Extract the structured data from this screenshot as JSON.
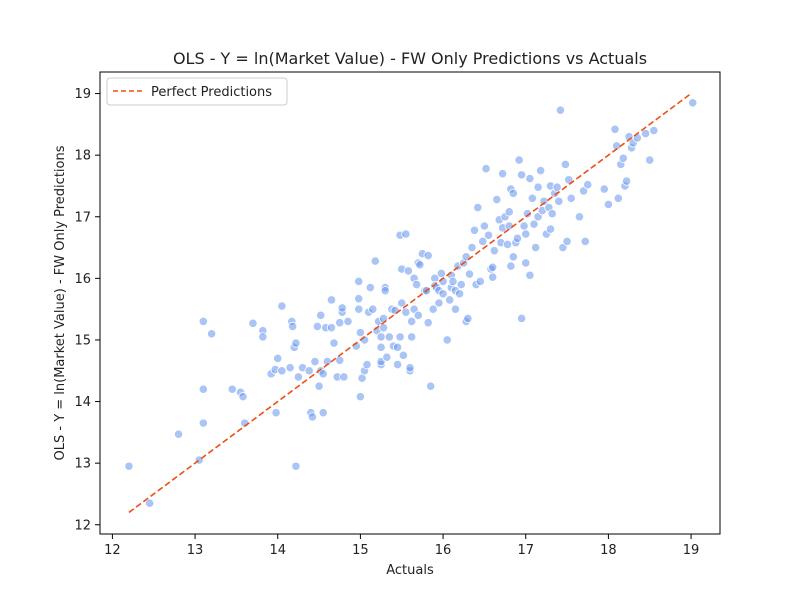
{
  "chart_data": {
    "type": "scatter",
    "title": "OLS - Y = ln(Market Value) - FW Only Predictions vs Actuals",
    "xlabel": "Actuals",
    "ylabel": "OLS - Y = ln(Market Value) - FW Only Predictions",
    "xlim": [
      11.85,
      19.35
    ],
    "ylim": [
      11.85,
      19.35
    ],
    "xticks": [
      12,
      13,
      14,
      15,
      16,
      17,
      18,
      19
    ],
    "yticks": [
      12,
      13,
      14,
      15,
      16,
      17,
      18,
      19
    ],
    "grid": false,
    "legend": {
      "position": "top-left",
      "entries": [
        "Perfect Predictions"
      ]
    },
    "colors": {
      "points": "#6495ED",
      "reference_line": "#F04E14"
    },
    "reference_line": {
      "name": "Perfect Predictions",
      "x": [
        12.2,
        19.0
      ],
      "y": [
        12.2,
        19.0
      ]
    },
    "series": [
      {
        "points": [
          [
            12.2,
            12.95
          ],
          [
            12.45,
            12.35
          ],
          [
            12.8,
            13.47
          ],
          [
            13.05,
            13.05
          ],
          [
            13.1,
            13.65
          ],
          [
            13.1,
            14.2
          ],
          [
            13.1,
            15.3
          ],
          [
            13.2,
            15.1
          ],
          [
            13.45,
            14.2
          ],
          [
            13.55,
            14.15
          ],
          [
            13.6,
            13.65
          ],
          [
            13.58,
            14.08
          ],
          [
            13.7,
            15.27
          ],
          [
            13.82,
            15.15
          ],
          [
            13.82,
            15.05
          ],
          [
            13.92,
            14.45
          ],
          [
            13.97,
            14.52
          ],
          [
            13.98,
            13.82
          ],
          [
            14.0,
            14.7
          ],
          [
            14.05,
            14.5
          ],
          [
            14.05,
            15.55
          ],
          [
            14.15,
            14.55
          ],
          [
            14.17,
            15.3
          ],
          [
            14.18,
            15.22
          ],
          [
            14.2,
            14.88
          ],
          [
            14.22,
            14.95
          ],
          [
            14.22,
            12.95
          ],
          [
            14.25,
            14.4
          ],
          [
            14.3,
            14.55
          ],
          [
            14.38,
            14.5
          ],
          [
            14.4,
            13.82
          ],
          [
            14.42,
            13.75
          ],
          [
            14.45,
            14.65
          ],
          [
            14.48,
            15.22
          ],
          [
            14.5,
            14.25
          ],
          [
            14.52,
            14.5
          ],
          [
            14.52,
            15.4
          ],
          [
            14.55,
            14.45
          ],
          [
            14.55,
            13.82
          ],
          [
            14.58,
            15.2
          ],
          [
            14.6,
            14.65
          ],
          [
            14.65,
            15.2
          ],
          [
            14.65,
            15.65
          ],
          [
            14.68,
            14.95
          ],
          [
            14.72,
            14.4
          ],
          [
            14.75,
            15.28
          ],
          [
            14.75,
            14.67
          ],
          [
            14.78,
            15.45
          ],
          [
            14.78,
            15.52
          ],
          [
            14.8,
            14.4
          ],
          [
            14.85,
            15.3
          ],
          [
            14.95,
            14.9
          ],
          [
            14.98,
            15.95
          ],
          [
            14.98,
            15.67
          ],
          [
            14.98,
            15.5
          ],
          [
            15.0,
            15.12
          ],
          [
            15.0,
            14.08
          ],
          [
            15.02,
            14.38
          ],
          [
            15.05,
            15.0
          ],
          [
            15.05,
            14.5
          ],
          [
            15.08,
            14.6
          ],
          [
            15.1,
            15.45
          ],
          [
            15.12,
            15.85
          ],
          [
            15.15,
            15.5
          ],
          [
            15.18,
            16.28
          ],
          [
            15.2,
            15.15
          ],
          [
            15.22,
            15.3
          ],
          [
            15.25,
            14.6
          ],
          [
            15.25,
            14.65
          ],
          [
            15.25,
            14.88
          ],
          [
            15.25,
            15.05
          ],
          [
            15.28,
            15.35
          ],
          [
            15.28,
            15.2
          ],
          [
            15.3,
            15.85
          ],
          [
            15.3,
            15.8
          ],
          [
            15.32,
            14.72
          ],
          [
            15.35,
            15.05
          ],
          [
            15.38,
            15.5
          ],
          [
            15.4,
            14.9
          ],
          [
            15.42,
            15.48
          ],
          [
            15.45,
            14.6
          ],
          [
            15.45,
            14.88
          ],
          [
            15.48,
            15.05
          ],
          [
            15.48,
            16.7
          ],
          [
            15.5,
            15.6
          ],
          [
            15.5,
            16.15
          ],
          [
            15.52,
            14.75
          ],
          [
            15.55,
            16.72
          ],
          [
            15.55,
            15.45
          ],
          [
            15.58,
            16.12
          ],
          [
            15.6,
            14.5
          ],
          [
            15.6,
            14.55
          ],
          [
            15.62,
            15.3
          ],
          [
            15.62,
            15.05
          ],
          [
            15.65,
            15.5
          ],
          [
            15.65,
            16.0
          ],
          [
            15.68,
            15.9
          ],
          [
            15.7,
            15.4
          ],
          [
            15.7,
            16.25
          ],
          [
            15.72,
            16.22
          ],
          [
            15.75,
            16.4
          ],
          [
            15.78,
            15.8
          ],
          [
            15.8,
            15.8
          ],
          [
            15.82,
            16.37
          ],
          [
            15.82,
            15.28
          ],
          [
            15.85,
            14.25
          ],
          [
            15.88,
            15.5
          ],
          [
            15.9,
            16.0
          ],
          [
            15.9,
            15.88
          ],
          [
            15.92,
            15.85
          ],
          [
            15.95,
            15.6
          ],
          [
            15.95,
            15.8
          ],
          [
            15.98,
            16.08
          ],
          [
            16.0,
            15.95
          ],
          [
            16.0,
            15.75
          ],
          [
            16.05,
            15.0
          ],
          [
            16.08,
            15.65
          ],
          [
            16.1,
            16.05
          ],
          [
            16.1,
            15.85
          ],
          [
            16.12,
            15.95
          ],
          [
            16.15,
            15.8
          ],
          [
            16.15,
            15.5
          ],
          [
            16.18,
            16.2
          ],
          [
            16.2,
            15.75
          ],
          [
            16.22,
            15.9
          ],
          [
            16.25,
            16.25
          ],
          [
            16.28,
            16.35
          ],
          [
            16.28,
            15.3
          ],
          [
            16.3,
            15.35
          ],
          [
            16.32,
            16.07
          ],
          [
            16.35,
            16.5
          ],
          [
            16.38,
            16.78
          ],
          [
            16.4,
            15.9
          ],
          [
            16.42,
            17.15
          ],
          [
            16.45,
            15.95
          ],
          [
            16.48,
            16.6
          ],
          [
            16.5,
            16.85
          ],
          [
            16.52,
            17.78
          ],
          [
            16.55,
            16.7
          ],
          [
            16.58,
            16.15
          ],
          [
            16.6,
            16.18
          ],
          [
            16.6,
            16.02
          ],
          [
            16.62,
            16.45
          ],
          [
            16.65,
            17.28
          ],
          [
            16.68,
            16.95
          ],
          [
            16.7,
            16.58
          ],
          [
            16.72,
            16.82
          ],
          [
            16.72,
            17.7
          ],
          [
            16.75,
            17.0
          ],
          [
            16.78,
            16.55
          ],
          [
            16.8,
            16.85
          ],
          [
            16.8,
            17.08
          ],
          [
            16.82,
            17.45
          ],
          [
            16.82,
            16.2
          ],
          [
            16.85,
            17.38
          ],
          [
            16.85,
            16.35
          ],
          [
            16.88,
            16.58
          ],
          [
            16.9,
            16.65
          ],
          [
            16.92,
            17.92
          ],
          [
            16.95,
            17.68
          ],
          [
            16.95,
            15.35
          ],
          [
            16.98,
            16.85
          ],
          [
            17.0,
            16.72
          ],
          [
            17.0,
            16.25
          ],
          [
            17.02,
            17.05
          ],
          [
            17.05,
            17.62
          ],
          [
            17.05,
            16.05
          ],
          [
            17.08,
            17.3
          ],
          [
            17.1,
            16.88
          ],
          [
            17.12,
            16.5
          ],
          [
            17.15,
            17.0
          ],
          [
            17.15,
            17.48
          ],
          [
            17.18,
            17.75
          ],
          [
            17.2,
            17.1
          ],
          [
            17.22,
            17.25
          ],
          [
            17.25,
            16.72
          ],
          [
            17.28,
            17.15
          ],
          [
            17.3,
            17.5
          ],
          [
            17.3,
            16.8
          ],
          [
            17.32,
            17.05
          ],
          [
            17.35,
            17.38
          ],
          [
            17.38,
            17.48
          ],
          [
            17.4,
            17.25
          ],
          [
            17.42,
            18.73
          ],
          [
            17.45,
            16.5
          ],
          [
            17.48,
            17.85
          ],
          [
            17.5,
            16.6
          ],
          [
            17.52,
            17.6
          ],
          [
            17.55,
            17.3
          ],
          [
            17.65,
            17.0
          ],
          [
            17.7,
            17.42
          ],
          [
            17.72,
            16.6
          ],
          [
            17.75,
            17.52
          ],
          [
            17.95,
            17.45
          ],
          [
            18.0,
            17.2
          ],
          [
            18.08,
            18.42
          ],
          [
            18.1,
            18.15
          ],
          [
            18.12,
            17.3
          ],
          [
            18.15,
            17.85
          ],
          [
            18.18,
            17.95
          ],
          [
            18.2,
            17.5
          ],
          [
            18.22,
            17.58
          ],
          [
            18.25,
            18.3
          ],
          [
            18.28,
            18.12
          ],
          [
            18.3,
            18.2
          ],
          [
            18.35,
            18.28
          ],
          [
            18.45,
            18.35
          ],
          [
            18.5,
            17.92
          ],
          [
            18.55,
            18.4
          ],
          [
            19.02,
            18.85
          ]
        ]
      }
    ]
  }
}
